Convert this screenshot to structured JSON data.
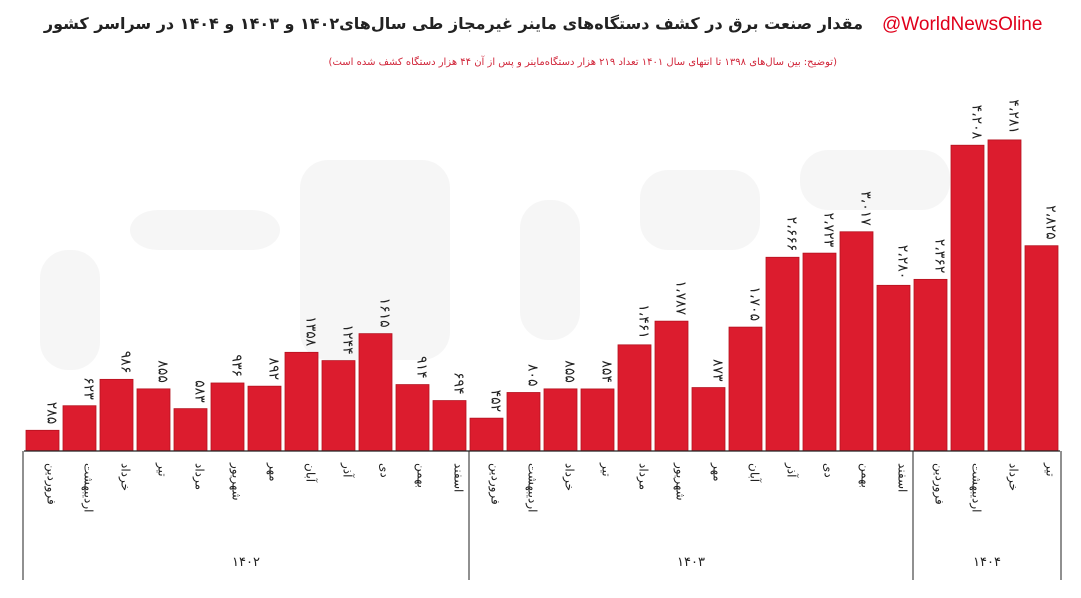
{
  "header": {
    "title": "مقدار صنعت برق در کشف دستگاه‌های ماینر غیرمجاز طی سال‌های۱۴۰۲ و ۱۴۰۳ و ۱۴۰۴ در سراسر کشور",
    "subtitle": "(توضیح: بین سال‌های ۱۳۹۸ تا انتهای سال ۱۴۰۱ تعداد ۲۱۹ هزار دستگاه‌ماینر و پس از آن ۴۴ هزار دستگاه کشف شده است)",
    "watermark_handle": "@WorldNewsOline"
  },
  "colors": {
    "bar": "#dc1c2e",
    "bar_edge": "#b5121f",
    "axis": "#222222",
    "text": "#222222",
    "subtitle": "#d1263a"
  },
  "chart_data": {
    "type": "bar",
    "title": "مقدار صنعت برق در کشف دستگاه‌های ماینر غیرمجاز طی سال‌های۱۴۰۲ و ۱۴۰۳ و ۱۴۰۴ در سراسر کشور",
    "ylim": [
      0,
      4500
    ],
    "grid": false,
    "bars": [
      {
        "month": "فروردین",
        "year": "۱۴۰۲",
        "value": 285,
        "label": "۲۸۵"
      },
      {
        "month": "اردیبهشت",
        "year": "۱۴۰۲",
        "value": 623,
        "label": "۶۲۳"
      },
      {
        "month": "خرداد",
        "year": "۱۴۰۲",
        "value": 986,
        "label": "۹۸۶"
      },
      {
        "month": "تیر",
        "year": "۱۴۰۲",
        "value": 855,
        "label": "۸۵۵"
      },
      {
        "month": "مرداد",
        "year": "۱۴۰۲",
        "value": 583,
        "label": "۵۸۳"
      },
      {
        "month": "شهریور",
        "year": "۱۴۰۲",
        "value": 936,
        "label": "۹۳۶"
      },
      {
        "month": "مهر",
        "year": "۱۴۰۲",
        "value": 892,
        "label": "۸۹۲"
      },
      {
        "month": "آبان",
        "year": "۱۴۰۲",
        "value": 1358,
        "label": "۱۳۵۸"
      },
      {
        "month": "آذر",
        "year": "۱۴۰۲",
        "value": 1244,
        "label": "۱۲۴۴"
      },
      {
        "month": "دی",
        "year": "۱۴۰۲",
        "value": 1615,
        "label": "۱۶۱۵"
      },
      {
        "month": "بهمن",
        "year": "۱۴۰۲",
        "value": 914,
        "label": "۹۱۴"
      },
      {
        "month": "اسفند",
        "year": "۱۴۰۲",
        "value": 694,
        "label": "۶۹۴"
      },
      {
        "month": "فروردین",
        "year": "۱۴۰۳",
        "value": 452,
        "label": "۴۵۲"
      },
      {
        "month": "اردیبهشت",
        "year": "۱۴۰۳",
        "value": 805,
        "label": "۸۰۵"
      },
      {
        "month": "خرداد",
        "year": "۱۴۰۳",
        "value": 855,
        "label": "۸۵۵"
      },
      {
        "month": "تیر",
        "year": "۱۴۰۳",
        "value": 854,
        "label": "۸۵۴"
      },
      {
        "month": "مرداد",
        "year": "۱۴۰۳",
        "value": 1461,
        "label": "۱،۴۶۱"
      },
      {
        "month": "شهریور",
        "year": "۱۴۰۳",
        "value": 1787,
        "label": "۱،۷۸۷"
      },
      {
        "month": "مهر",
        "year": "۱۴۰۳",
        "value": 873,
        "label": "۸۷۳"
      },
      {
        "month": "آبان",
        "year": "۱۴۰۳",
        "value": 1705,
        "label": "۱،۷۰۵"
      },
      {
        "month": "آذر",
        "year": "۱۴۰۳",
        "value": 2666,
        "label": "۲،۶۶۶"
      },
      {
        "month": "دی",
        "year": "۱۴۰۳",
        "value": 2723,
        "label": "۲،۷۲۳"
      },
      {
        "month": "بهمن",
        "year": "۱۴۰۳",
        "value": 3017,
        "label": "۳،۰۱۷"
      },
      {
        "month": "اسفند",
        "year": "۱۴۰۳",
        "value": 2280,
        "label": "۲،۲۸۰"
      },
      {
        "month": "فروردین",
        "year": "۱۴۰۴",
        "value": 2362,
        "label": "۲،۳۶۲"
      },
      {
        "month": "اردیبهشت",
        "year": "۱۴۰۴",
        "value": 4208,
        "label": "۴،۲۰۸"
      },
      {
        "month": "خرداد",
        "year": "۱۴۰۴",
        "value": 4281,
        "label": "۴،۲۸۱"
      },
      {
        "month": "تیر",
        "year": "۱۴۰۴",
        "value": 2825,
        "label": "۲،۸۲۵"
      }
    ],
    "year_groups": [
      {
        "label": "۱۴۰۲",
        "first": 0,
        "last": 11
      },
      {
        "label": "۱۴۰۳",
        "first": 12,
        "last": 23
      },
      {
        "label": "۱۴۰۴",
        "first": 24,
        "last": 27
      }
    ]
  }
}
